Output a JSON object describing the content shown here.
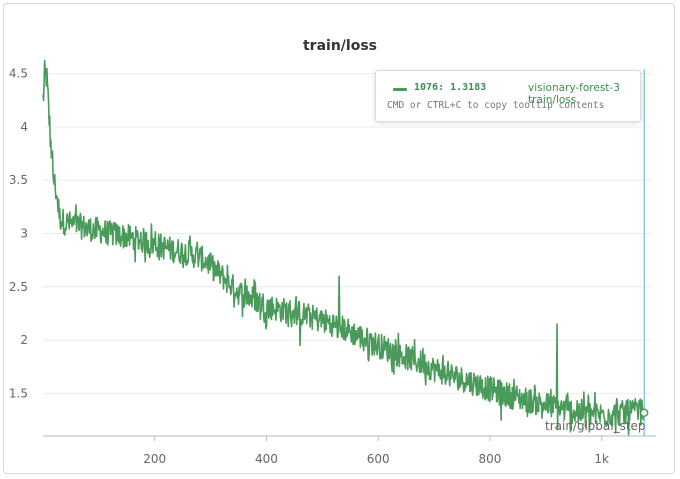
{
  "chart_data": {
    "type": "line",
    "title": "train/loss",
    "xlabel": "train/global_step",
    "ylabel": "",
    "xlim": [
      0,
      1090
    ],
    "ylim": [
      1.1,
      4.6
    ],
    "xticks": [
      200,
      400,
      600,
      800,
      1000
    ],
    "xtick_labels": [
      "200",
      "400",
      "600",
      "800",
      "1k"
    ],
    "yticks": [
      1.5,
      2,
      2.5,
      3,
      3.5,
      4,
      4.5
    ],
    "ytick_labels": [
      "1.5",
      "2",
      "2.5",
      "3",
      "3.5",
      "4",
      "4.5"
    ],
    "grid": true,
    "series": [
      {
        "name": "visionary-forest-3 train/loss",
        "color": "#4a9a5b",
        "anchors_x": [
          0,
          3,
          6,
          10,
          14,
          18,
          25,
          30,
          40,
          60,
          80,
          100,
          120,
          150,
          180,
          200,
          230,
          260,
          290,
          320,
          350,
          380,
          400,
          430,
          460,
          490,
          520,
          550,
          580,
          610,
          640,
          670,
          700,
          730,
          760,
          790,
          820,
          850,
          880,
          910,
          940,
          970,
          1000,
          1030,
          1060,
          1076
        ],
        "anchors_y": [
          4.25,
          4.45,
          4.5,
          4.15,
          3.85,
          3.55,
          3.35,
          3.15,
          3.1,
          3.08,
          3.05,
          3.03,
          3.0,
          2.97,
          2.93,
          2.9,
          2.85,
          2.82,
          2.75,
          2.6,
          2.45,
          2.38,
          2.32,
          2.28,
          2.25,
          2.2,
          2.15,
          2.08,
          2.0,
          1.93,
          1.86,
          1.8,
          1.73,
          1.67,
          1.62,
          1.56,
          1.5,
          1.46,
          1.42,
          1.38,
          1.34,
          1.32,
          1.3,
          1.31,
          1.33,
          1.318
        ],
        "noise_amplitude": 0.12,
        "spikes": [
          {
            "x": 460,
            "y": 1.95
          },
          {
            "x": 920,
            "y": 2.15
          },
          {
            "x": 530,
            "y": 2.6
          },
          {
            "x": 820,
            "y": 1.25
          }
        ]
      }
    ],
    "hover": {
      "step": 1076,
      "value_text": "1076: 1.3183",
      "series_text": "visionary-forest-3 train/loss",
      "hint": "CMD or CTRL+C to copy tooltip contents"
    }
  }
}
